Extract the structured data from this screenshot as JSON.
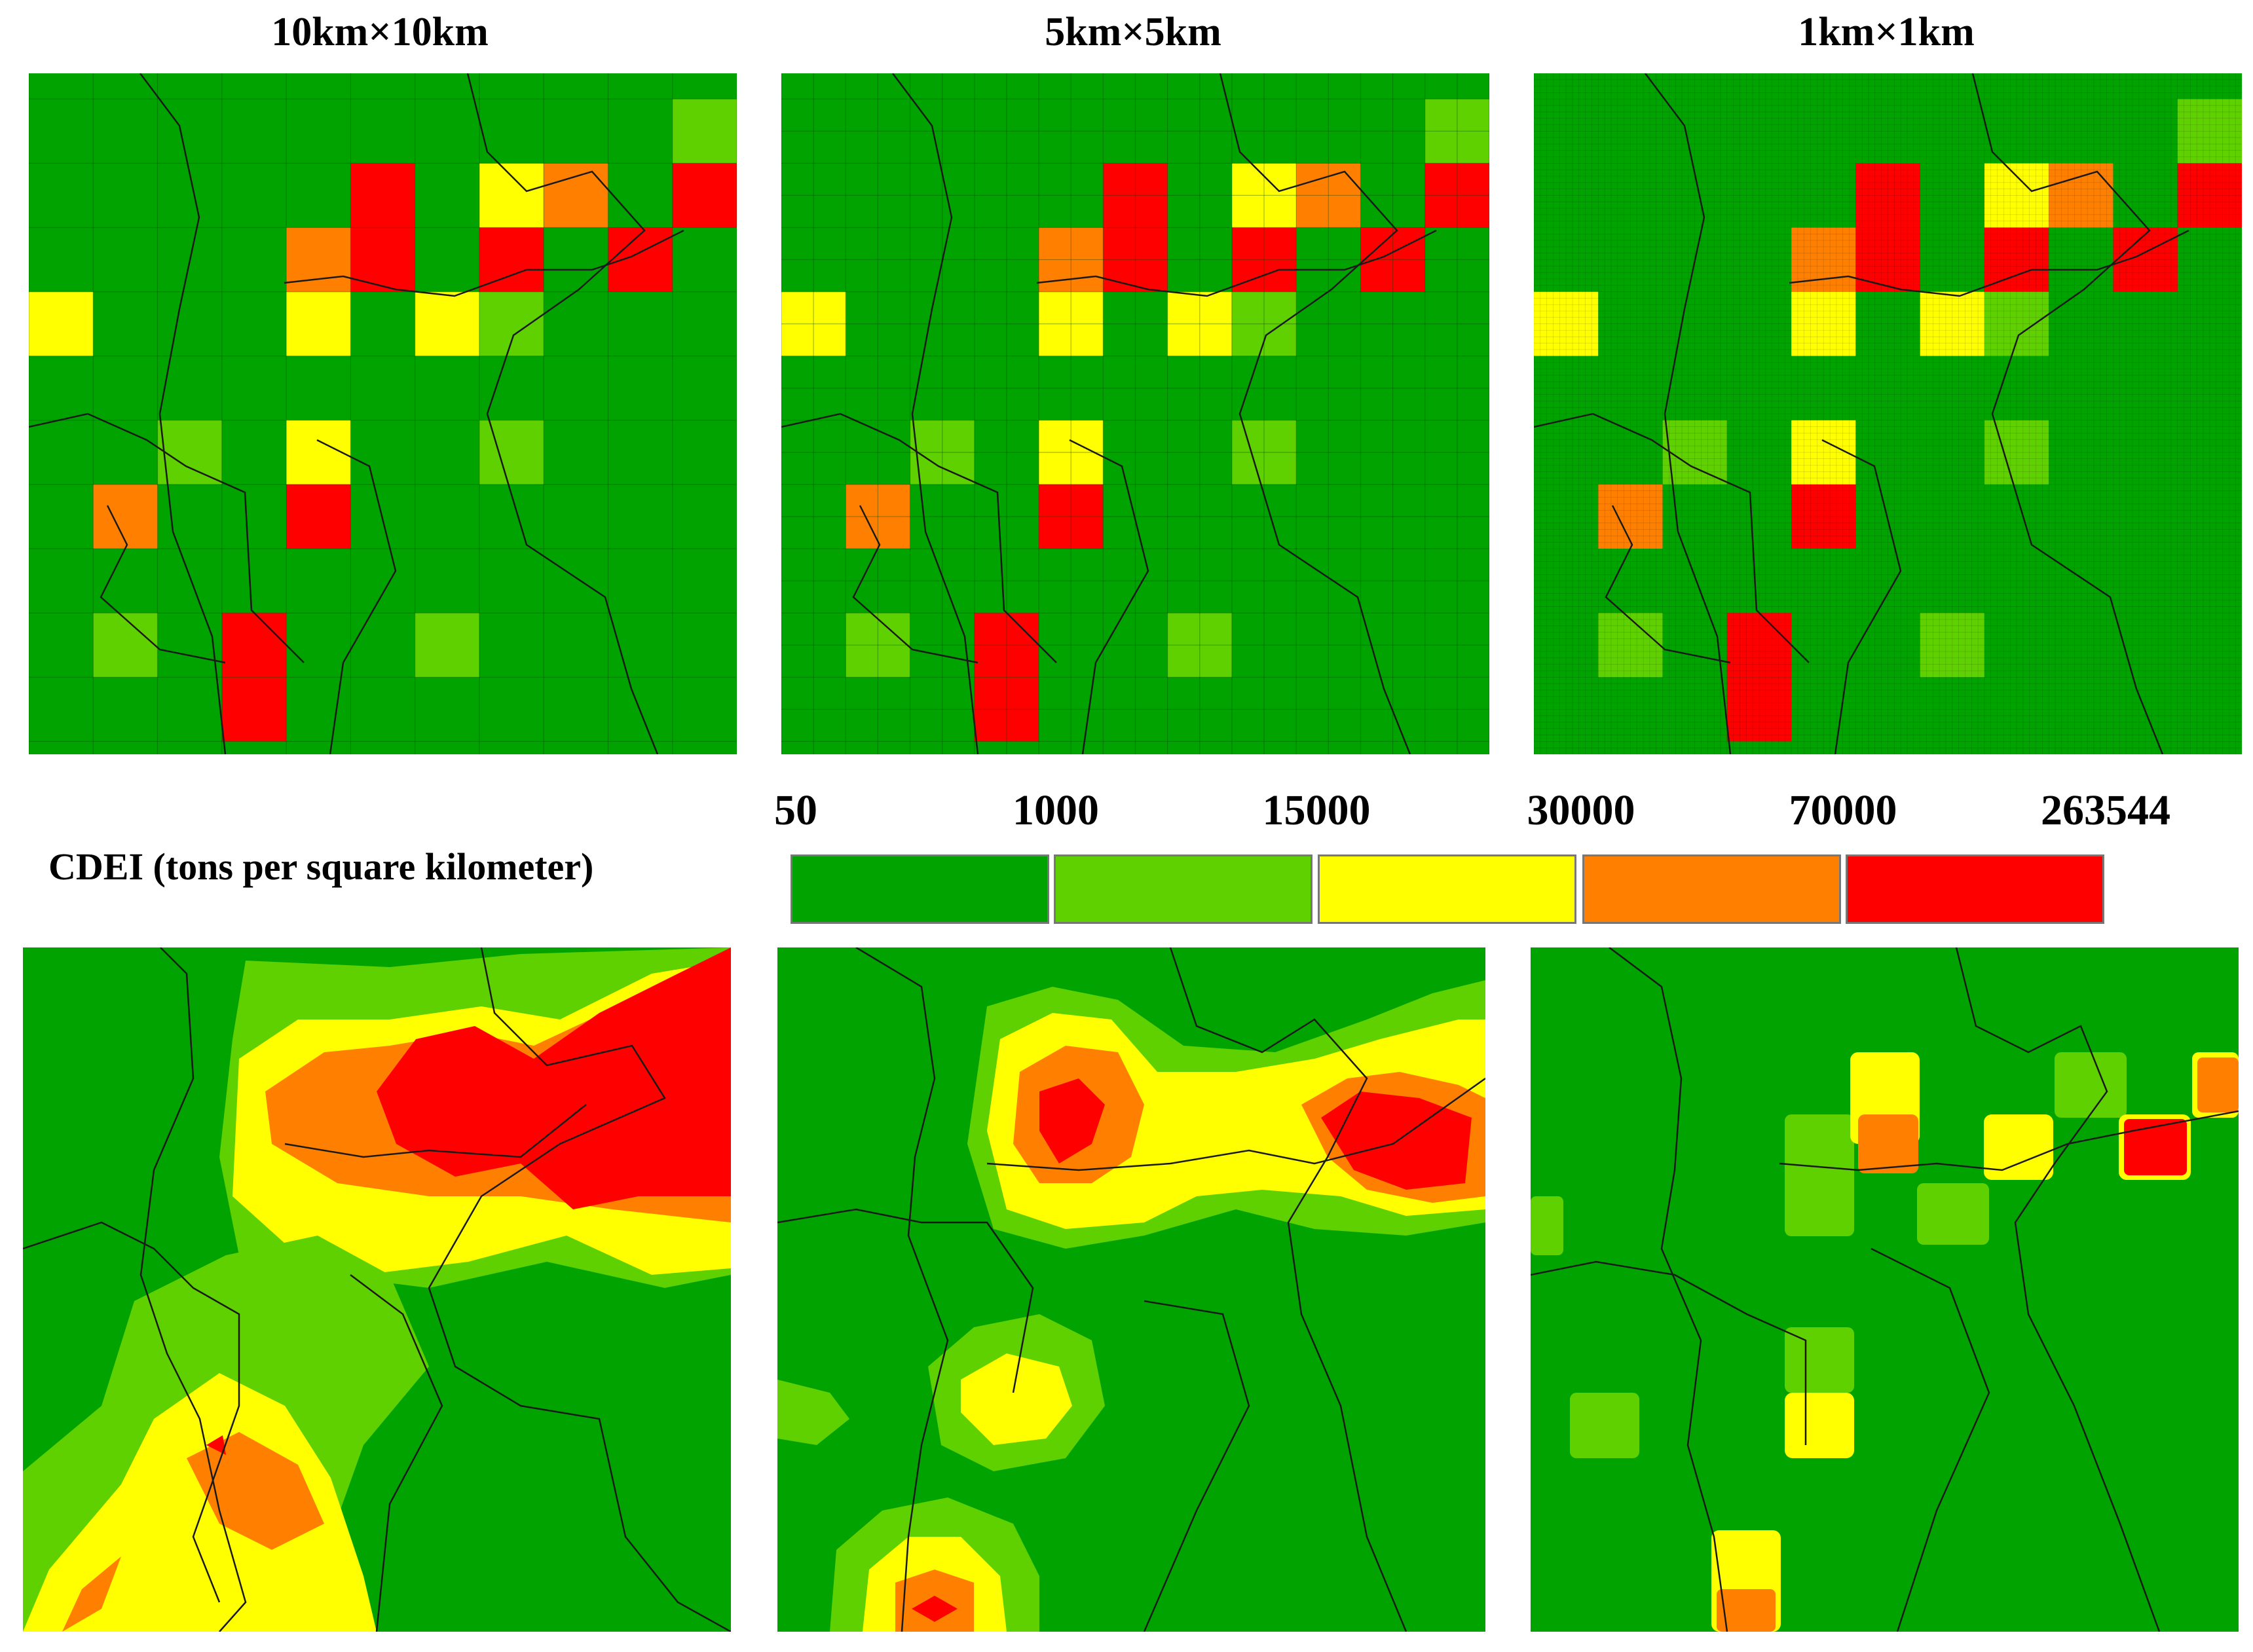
{
  "titles": {
    "col1": "10km×10km",
    "col2": "5km×5km",
    "col3": "1km×1km"
  },
  "legend": {
    "title": "CDEI (tons per square kilometer)",
    "breaks": [
      "50",
      "1000",
      "15000",
      "30000",
      "70000",
      "263544"
    ],
    "colors": [
      "#00a300",
      "#5fd000",
      "#ffff00",
      "#ff8000",
      "#ff0000"
    ]
  },
  "grid_cells": [
    {
      "row": 1,
      "col": 10,
      "cls": 1
    },
    {
      "row": 2,
      "col": 5,
      "cls": 4
    },
    {
      "row": 2,
      "col": 7,
      "cls": 2
    },
    {
      "row": 2,
      "col": 8,
      "cls": 3
    },
    {
      "row": 2,
      "col": 10,
      "cls": 4
    },
    {
      "row": 3,
      "col": 4,
      "cls": 3
    },
    {
      "row": 3,
      "col": 5,
      "cls": 4
    },
    {
      "row": 3,
      "col": 7,
      "cls": 4
    },
    {
      "row": 3,
      "col": 9,
      "cls": 4
    },
    {
      "row": 4,
      "col": 0,
      "cls": 2
    },
    {
      "row": 4,
      "col": 4,
      "cls": 2
    },
    {
      "row": 4,
      "col": 6,
      "cls": 2
    },
    {
      "row": 4,
      "col": 7,
      "cls": 1
    },
    {
      "row": 6,
      "col": 2,
      "cls": 1
    },
    {
      "row": 6,
      "col": 4,
      "cls": 2
    },
    {
      "row": 6,
      "col": 7,
      "cls": 1
    },
    {
      "row": 7,
      "col": 1,
      "cls": 3
    },
    {
      "row": 7,
      "col": 4,
      "cls": 4
    },
    {
      "row": 9,
      "col": 1,
      "cls": 1
    },
    {
      "row": 9,
      "col": 3,
      "cls": 4
    },
    {
      "row": 9,
      "col": 6,
      "cls": 1
    },
    {
      "row": 10,
      "col": 3,
      "cls": 4
    }
  ]
}
